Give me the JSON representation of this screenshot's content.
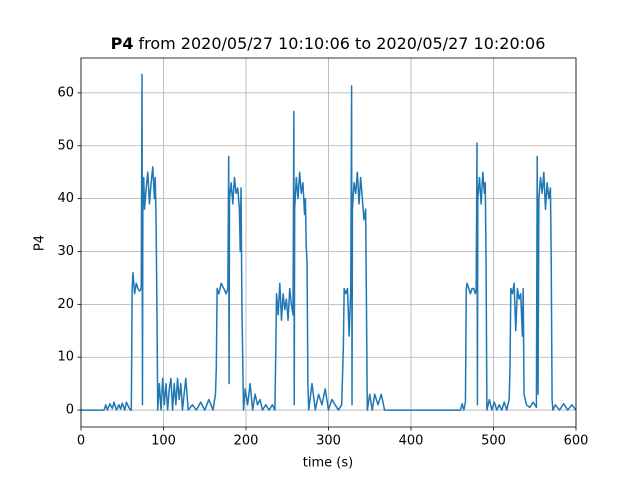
{
  "chart_data": {
    "type": "line",
    "title": [
      "P4",
      "from 2020/05/27 10:10:06 to 2020/05/27 10:20:06"
    ],
    "xlabel": "time (s)",
    "ylabel": "P4",
    "color": "#1f77b4",
    "grid": true,
    "xlim": [
      0,
      600
    ],
    "ylim": [
      -3.2,
      66.6
    ],
    "xticks": [
      0,
      100,
      200,
      300,
      400,
      500,
      600
    ],
    "yticks": [
      0,
      10,
      20,
      30,
      40,
      50,
      60
    ],
    "x": [
      0,
      28,
      30,
      32,
      35,
      38,
      40,
      43,
      46,
      48,
      50,
      53,
      55,
      58,
      60,
      61,
      61.5,
      62,
      63,
      65,
      67,
      69,
      71,
      73,
      74,
      74.5,
      75,
      76,
      77,
      79,
      81,
      83,
      85,
      87,
      89,
      90,
      91,
      92,
      93,
      95,
      97,
      99,
      101,
      103,
      105,
      107,
      109,
      111,
      113,
      115,
      117,
      119,
      121,
      123,
      125,
      127,
      130,
      135,
      140,
      145,
      150,
      155,
      160,
      163,
      164,
      165,
      167,
      170,
      173,
      176,
      178,
      179,
      179.5,
      180,
      182,
      184,
      186,
      188,
      190,
      192,
      193,
      194,
      195,
      196,
      197,
      199,
      202,
      205,
      208,
      211,
      214,
      217,
      220,
      224,
      228,
      232,
      235,
      236,
      237,
      239,
      241,
      243,
      245,
      247,
      249,
      251,
      253,
      255,
      257,
      258,
      258.5,
      259,
      261,
      263,
      265,
      267,
      269,
      271,
      272,
      273,
      274,
      275,
      276,
      280,
      284,
      288,
      292,
      296,
      300,
      304,
      308,
      312,
      316,
      318,
      319,
      321,
      323,
      325,
      327,
      328,
      328.5,
      329,
      331,
      333,
      335,
      337,
      339,
      341,
      343,
      345,
      346,
      347,
      350,
      353,
      356,
      360,
      364,
      368,
      370,
      460,
      462,
      464,
      466,
      467,
      468,
      470,
      472,
      474,
      476,
      478,
      479,
      480,
      480.5,
      481,
      483,
      485,
      487,
      489,
      490,
      491,
      492,
      495,
      498,
      501,
      504,
      507,
      510,
      513,
      516,
      519,
      520,
      521,
      523,
      525,
      527,
      529,
      531,
      533,
      535,
      536,
      537,
      540,
      544,
      548,
      552,
      553,
      554,
      555,
      557,
      559,
      561,
      563,
      565,
      567,
      569,
      570,
      571,
      572,
      575,
      580,
      585,
      590,
      595,
      600
    ],
    "values": [
      0,
      0,
      1,
      0,
      1.2,
      0.3,
      1.5,
      0,
      1,
      0.2,
      1.3,
      0,
      1.5,
      0.5,
      0,
      0,
      12,
      23,
      26,
      22,
      24,
      23,
      22.5,
      23,
      63.5,
      1,
      40,
      44,
      38,
      42,
      45,
      39,
      43,
      46,
      40,
      44,
      36,
      20,
      0,
      5,
      0,
      6,
      1,
      5,
      0,
      4,
      6,
      0,
      5,
      1,
      6,
      2,
      5,
      0,
      3,
      6,
      0,
      1,
      0,
      1.5,
      0,
      2,
      0,
      3,
      8,
      23,
      22,
      24,
      23,
      22,
      23,
      48,
      5,
      40,
      43,
      39,
      44,
      41,
      42,
      38,
      30,
      42,
      20,
      10,
      0,
      4,
      1,
      5,
      0,
      3,
      1,
      2,
      0,
      1,
      0,
      1,
      0,
      10,
      22,
      18,
      24,
      17,
      22,
      19,
      21,
      17,
      23,
      20,
      18,
      56.5,
      1,
      38,
      44,
      40,
      45,
      41,
      43,
      37,
      40,
      31,
      28,
      5,
      0,
      5,
      0,
      3,
      1,
      4,
      0,
      2,
      1,
      0,
      1,
      12,
      23,
      22,
      23,
      14,
      23,
      61.3,
      1,
      38,
      43,
      41,
      45,
      39,
      44,
      40,
      36,
      38,
      20,
      0,
      3,
      0,
      3,
      1,
      3,
      0,
      0,
      0,
      1.2,
      0,
      1.5,
      23,
      24,
      23,
      22,
      23,
      23,
      22,
      23,
      50.5,
      1,
      40,
      44,
      39,
      45,
      41,
      43,
      28,
      0,
      2,
      0,
      1.5,
      0,
      1,
      0,
      1.5,
      0,
      2,
      8,
      23,
      22,
      24,
      15,
      23,
      21,
      22,
      14,
      23,
      3,
      1,
      0.5,
      1.5,
      0.5,
      48,
      3,
      40,
      44,
      41,
      45,
      38,
      43,
      40,
      42,
      28,
      2,
      0,
      1,
      0,
      1.2,
      0,
      1,
      0
    ]
  }
}
